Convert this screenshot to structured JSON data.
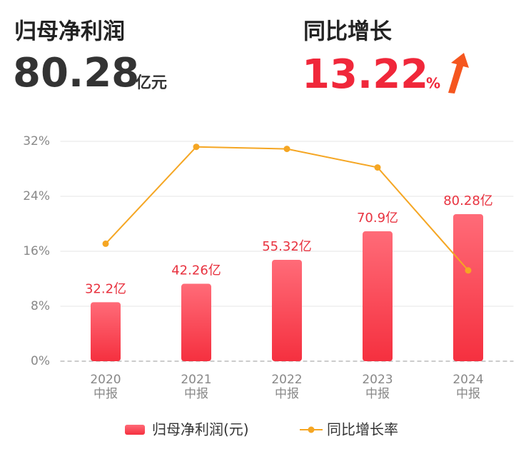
{
  "header": {
    "profit_label": "归母净利润",
    "profit_value": "80.28",
    "profit_unit": "亿元",
    "growth_label": "同比增长",
    "growth_value": "13.22",
    "growth_unit": "%"
  },
  "chart_data": {
    "type": "bar_line",
    "categories": [
      [
        "2020",
        "中报"
      ],
      [
        "2021",
        "中报"
      ],
      [
        "2022",
        "中报"
      ],
      [
        "2023",
        "中报"
      ],
      [
        "2024",
        "中报"
      ]
    ],
    "series": [
      {
        "name": "归母净利润(元)",
        "type": "bar",
        "axis": "y2",
        "color": "#f5303f",
        "values": [
          32.2,
          42.26,
          55.32,
          70.9,
          80.28
        ],
        "value_labels": [
          "32.2亿",
          "42.26亿",
          "55.32亿",
          "70.9亿",
          "80.28亿"
        ]
      },
      {
        "name": "同比增长率",
        "type": "line",
        "color": "#f5a623",
        "values": [
          17.1,
          31.2,
          30.9,
          28.2,
          13.22
        ]
      }
    ],
    "ylim": [
      0,
      32
    ],
    "yticks": [
      {
        "value": 0,
        "label": "0%"
      },
      {
        "value": 8,
        "label": "8%"
      },
      {
        "value": 16,
        "label": "16%"
      },
      {
        "value": 24,
        "label": "24%"
      },
      {
        "value": 32,
        "label": "32%"
      }
    ],
    "y2lim": [
      0,
      120
    ],
    "grid": true
  }
}
